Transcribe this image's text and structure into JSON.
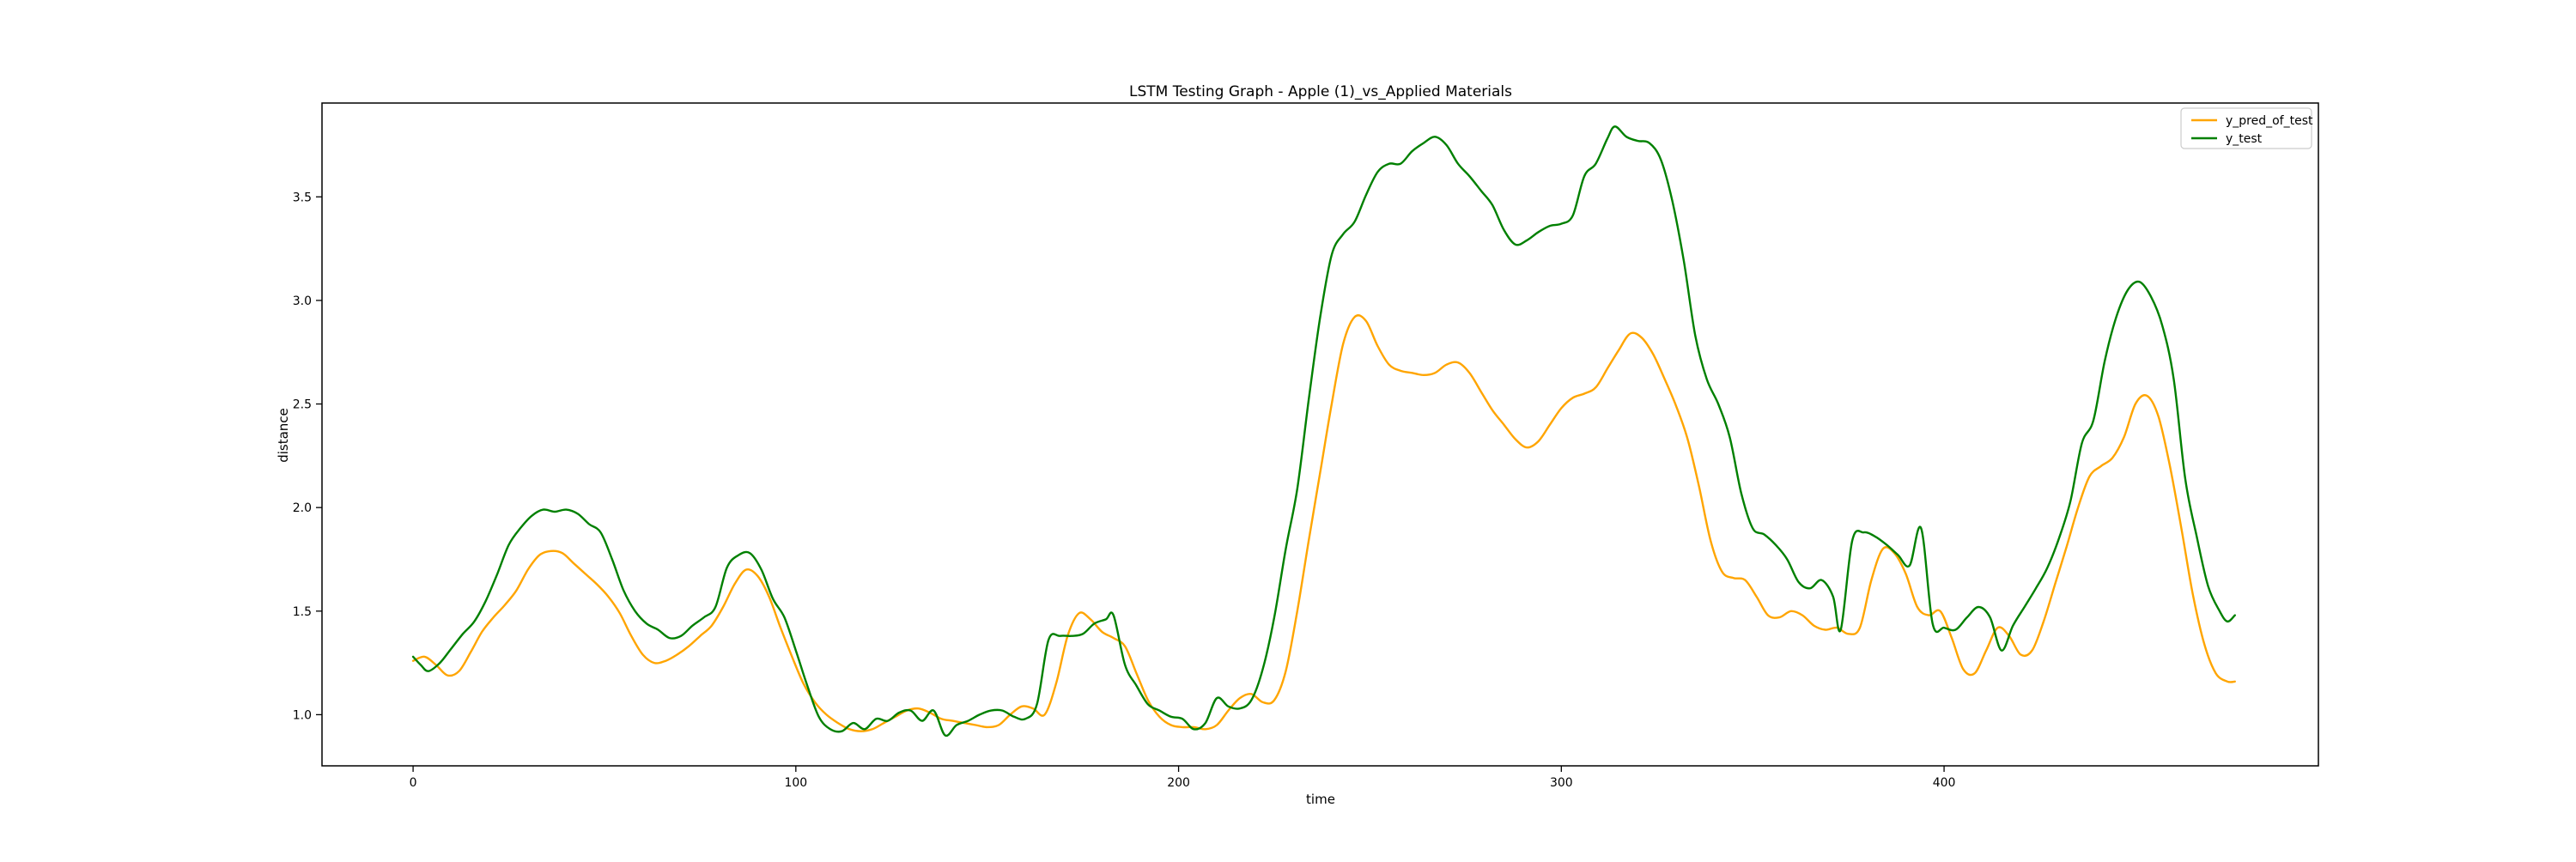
{
  "chart_data": {
    "type": "line",
    "title": "LSTM Testing Graph - Apple (1)_vs_Applied Materials",
    "xlabel": "time",
    "ylabel": "distance",
    "xlim": [
      -23.8,
      497.8
    ],
    "ylim": [
      0.753,
      3.953
    ],
    "xticks": [
      0,
      100,
      200,
      300,
      400
    ],
    "yticks": [
      1.0,
      1.5,
      2.0,
      2.5,
      3.0,
      3.5
    ],
    "xtick_labels": [
      "0",
      "100",
      "200",
      "300",
      "400"
    ],
    "ytick_labels": [
      "1.0",
      "1.5",
      "2.0",
      "2.5",
      "3.0",
      "3.5"
    ],
    "grid": false,
    "legend_position": "top-right",
    "series": [
      {
        "name": "y_pred_of_test",
        "color": "#ffa500",
        "points": [
          [
            0,
            1.26
          ],
          [
            3,
            1.28
          ],
          [
            6,
            1.24
          ],
          [
            9,
            1.19
          ],
          [
            12,
            1.21
          ],
          [
            15,
            1.3
          ],
          [
            18,
            1.4
          ],
          [
            21,
            1.47
          ],
          [
            24,
            1.53
          ],
          [
            27,
            1.6
          ],
          [
            30,
            1.7
          ],
          [
            33,
            1.77
          ],
          [
            36,
            1.79
          ],
          [
            39,
            1.78
          ],
          [
            42,
            1.73
          ],
          [
            45,
            1.68
          ],
          [
            48,
            1.63
          ],
          [
            51,
            1.57
          ],
          [
            54,
            1.49
          ],
          [
            57,
            1.38
          ],
          [
            60,
            1.29
          ],
          [
            63,
            1.25
          ],
          [
            66,
            1.26
          ],
          [
            69,
            1.29
          ],
          [
            72,
            1.33
          ],
          [
            75,
            1.38
          ],
          [
            78,
            1.43
          ],
          [
            81,
            1.52
          ],
          [
            84,
            1.63
          ],
          [
            87,
            1.7
          ],
          [
            90,
            1.67
          ],
          [
            93,
            1.57
          ],
          [
            96,
            1.42
          ],
          [
            99,
            1.28
          ],
          [
            102,
            1.15
          ],
          [
            105,
            1.06
          ],
          [
            108,
            1.0
          ],
          [
            111,
            0.96
          ],
          [
            114,
            0.93
          ],
          [
            117,
            0.92
          ],
          [
            120,
            0.93
          ],
          [
            123,
            0.96
          ],
          [
            126,
            0.99
          ],
          [
            129,
            1.02
          ],
          [
            132,
            1.03
          ],
          [
            135,
            1.01
          ],
          [
            138,
            0.98
          ],
          [
            141,
            0.97
          ],
          [
            144,
            0.96
          ],
          [
            147,
            0.95
          ],
          [
            150,
            0.94
          ],
          [
            153,
            0.95
          ],
          [
            156,
            1.0
          ],
          [
            159,
            1.04
          ],
          [
            162,
            1.03
          ],
          [
            165,
            1.0
          ],
          [
            168,
            1.15
          ],
          [
            171,
            1.38
          ],
          [
            174,
            1.49
          ],
          [
            177,
            1.46
          ],
          [
            180,
            1.4
          ],
          [
            183,
            1.37
          ],
          [
            186,
            1.33
          ],
          [
            189,
            1.2
          ],
          [
            192,
            1.07
          ],
          [
            195,
            0.99
          ],
          [
            198,
            0.95
          ],
          [
            201,
            0.94
          ],
          [
            204,
            0.94
          ],
          [
            207,
            0.93
          ],
          [
            210,
            0.95
          ],
          [
            213,
            1.02
          ],
          [
            216,
            1.08
          ],
          [
            219,
            1.1
          ],
          [
            222,
            1.06
          ],
          [
            225,
            1.07
          ],
          [
            228,
            1.21
          ],
          [
            231,
            1.5
          ],
          [
            234,
            1.84
          ],
          [
            237,
            2.17
          ],
          [
            240,
            2.5
          ],
          [
            243,
            2.79
          ],
          [
            246,
            2.92
          ],
          [
            249,
            2.9
          ],
          [
            252,
            2.78
          ],
          [
            255,
            2.69
          ],
          [
            258,
            2.66
          ],
          [
            261,
            2.65
          ],
          [
            264,
            2.64
          ],
          [
            267,
            2.65
          ],
          [
            270,
            2.69
          ],
          [
            273,
            2.7
          ],
          [
            276,
            2.65
          ],
          [
            279,
            2.56
          ],
          [
            282,
            2.47
          ],
          [
            285,
            2.4
          ],
          [
            288,
            2.33
          ],
          [
            291,
            2.29
          ],
          [
            294,
            2.32
          ],
          [
            297,
            2.4
          ],
          [
            300,
            2.48
          ],
          [
            303,
            2.53
          ],
          [
            306,
            2.55
          ],
          [
            309,
            2.58
          ],
          [
            312,
            2.67
          ],
          [
            315,
            2.76
          ],
          [
            318,
            2.84
          ],
          [
            321,
            2.82
          ],
          [
            324,
            2.74
          ],
          [
            327,
            2.62
          ],
          [
            330,
            2.49
          ],
          [
            333,
            2.33
          ],
          [
            336,
            2.1
          ],
          [
            339,
            1.84
          ],
          [
            342,
            1.69
          ],
          [
            345,
            1.66
          ],
          [
            348,
            1.65
          ],
          [
            351,
            1.57
          ],
          [
            354,
            1.48
          ],
          [
            357,
            1.47
          ],
          [
            360,
            1.5
          ],
          [
            363,
            1.48
          ],
          [
            366,
            1.43
          ],
          [
            369,
            1.41
          ],
          [
            372,
            1.42
          ],
          [
            375,
            1.39
          ],
          [
            378,
            1.42
          ],
          [
            381,
            1.65
          ],
          [
            384,
            1.8
          ],
          [
            387,
            1.78
          ],
          [
            390,
            1.68
          ],
          [
            393,
            1.52
          ],
          [
            396,
            1.48
          ],
          [
            399,
            1.5
          ],
          [
            402,
            1.37
          ],
          [
            405,
            1.22
          ],
          [
            408,
            1.2
          ],
          [
            411,
            1.31
          ],
          [
            414,
            1.42
          ],
          [
            417,
            1.38
          ],
          [
            420,
            1.29
          ],
          [
            423,
            1.31
          ],
          [
            426,
            1.45
          ],
          [
            429,
            1.63
          ],
          [
            432,
            1.81
          ],
          [
            435,
            2.0
          ],
          [
            438,
            2.15
          ],
          [
            441,
            2.2
          ],
          [
            444,
            2.24
          ],
          [
            447,
            2.34
          ],
          [
            450,
            2.5
          ],
          [
            453,
            2.54
          ],
          [
            456,
            2.44
          ],
          [
            459,
            2.2
          ],
          [
            462,
            1.9
          ],
          [
            465,
            1.58
          ],
          [
            468,
            1.34
          ],
          [
            471,
            1.2
          ],
          [
            474,
            1.16
          ],
          [
            476,
            1.16
          ]
        ]
      },
      {
        "name": "y_test",
        "color": "#008000",
        "points": [
          [
            0,
            1.28
          ],
          [
            2,
            1.24
          ],
          [
            4,
            1.21
          ],
          [
            7,
            1.25
          ],
          [
            10,
            1.32
          ],
          [
            13,
            1.39
          ],
          [
            16,
            1.45
          ],
          [
            19,
            1.55
          ],
          [
            22,
            1.68
          ],
          [
            25,
            1.82
          ],
          [
            28,
            1.9
          ],
          [
            31,
            1.96
          ],
          [
            34,
            1.99
          ],
          [
            37,
            1.98
          ],
          [
            40,
            1.99
          ],
          [
            43,
            1.97
          ],
          [
            46,
            1.92
          ],
          [
            49,
            1.88
          ],
          [
            52,
            1.75
          ],
          [
            55,
            1.6
          ],
          [
            58,
            1.5
          ],
          [
            61,
            1.44
          ],
          [
            64,
            1.41
          ],
          [
            67,
            1.37
          ],
          [
            70,
            1.38
          ],
          [
            73,
            1.43
          ],
          [
            76,
            1.47
          ],
          [
            79,
            1.52
          ],
          [
            82,
            1.71
          ],
          [
            85,
            1.77
          ],
          [
            88,
            1.78
          ],
          [
            91,
            1.7
          ],
          [
            94,
            1.56
          ],
          [
            97,
            1.47
          ],
          [
            100,
            1.31
          ],
          [
            103,
            1.14
          ],
          [
            106,
            0.99
          ],
          [
            109,
            0.93
          ],
          [
            112,
            0.92
          ],
          [
            115,
            0.96
          ],
          [
            118,
            0.93
          ],
          [
            121,
            0.98
          ],
          [
            124,
            0.97
          ],
          [
            127,
            1.01
          ],
          [
            130,
            1.02
          ],
          [
            133,
            0.97
          ],
          [
            136,
            1.02
          ],
          [
            139,
            0.9
          ],
          [
            142,
            0.95
          ],
          [
            145,
            0.97
          ],
          [
            148,
            1.0
          ],
          [
            151,
            1.02
          ],
          [
            154,
            1.02
          ],
          [
            157,
            0.99
          ],
          [
            160,
            0.98
          ],
          [
            163,
            1.05
          ],
          [
            166,
            1.36
          ],
          [
            169,
            1.38
          ],
          [
            172,
            1.38
          ],
          [
            175,
            1.39
          ],
          [
            178,
            1.44
          ],
          [
            181,
            1.46
          ],
          [
            183,
            1.48
          ],
          [
            186,
            1.24
          ],
          [
            189,
            1.14
          ],
          [
            192,
            1.05
          ],
          [
            195,
            1.02
          ],
          [
            198,
            0.99
          ],
          [
            201,
            0.98
          ],
          [
            204,
            0.93
          ],
          [
            207,
            0.96
          ],
          [
            210,
            1.08
          ],
          [
            213,
            1.04
          ],
          [
            216,
            1.03
          ],
          [
            219,
            1.07
          ],
          [
            222,
            1.22
          ],
          [
            225,
            1.47
          ],
          [
            228,
            1.8
          ],
          [
            231,
            2.09
          ],
          [
            234,
            2.52
          ],
          [
            237,
            2.92
          ],
          [
            240,
            3.22
          ],
          [
            243,
            3.32
          ],
          [
            246,
            3.38
          ],
          [
            249,
            3.51
          ],
          [
            252,
            3.62
          ],
          [
            255,
            3.66
          ],
          [
            258,
            3.66
          ],
          [
            261,
            3.72
          ],
          [
            264,
            3.76
          ],
          [
            267,
            3.79
          ],
          [
            270,
            3.75
          ],
          [
            273,
            3.66
          ],
          [
            276,
            3.6
          ],
          [
            279,
            3.53
          ],
          [
            282,
            3.46
          ],
          [
            285,
            3.34
          ],
          [
            288,
            3.27
          ],
          [
            291,
            3.29
          ],
          [
            294,
            3.33
          ],
          [
            297,
            3.36
          ],
          [
            300,
            3.37
          ],
          [
            303,
            3.41
          ],
          [
            306,
            3.6
          ],
          [
            309,
            3.66
          ],
          [
            312,
            3.78
          ],
          [
            314,
            3.84
          ],
          [
            317,
            3.79
          ],
          [
            320,
            3.77
          ],
          [
            323,
            3.76
          ],
          [
            326,
            3.68
          ],
          [
            329,
            3.48
          ],
          [
            332,
            3.19
          ],
          [
            335,
            2.83
          ],
          [
            338,
            2.62
          ],
          [
            341,
            2.5
          ],
          [
            344,
            2.34
          ],
          [
            347,
            2.07
          ],
          [
            350,
            1.9
          ],
          [
            353,
            1.87
          ],
          [
            356,
            1.82
          ],
          [
            359,
            1.75
          ],
          [
            362,
            1.64
          ],
          [
            365,
            1.61
          ],
          [
            368,
            1.65
          ],
          [
            371,
            1.57
          ],
          [
            373,
            1.41
          ],
          [
            376,
            1.84
          ],
          [
            379,
            1.88
          ],
          [
            382,
            1.86
          ],
          [
            385,
            1.82
          ],
          [
            388,
            1.77
          ],
          [
            391,
            1.72
          ],
          [
            394,
            1.9
          ],
          [
            397,
            1.44
          ],
          [
            400,
            1.42
          ],
          [
            403,
            1.41
          ],
          [
            406,
            1.47
          ],
          [
            409,
            1.52
          ],
          [
            412,
            1.47
          ],
          [
            415,
            1.31
          ],
          [
            418,
            1.43
          ],
          [
            421,
            1.52
          ],
          [
            424,
            1.61
          ],
          [
            427,
            1.71
          ],
          [
            430,
            1.85
          ],
          [
            433,
            2.03
          ],
          [
            436,
            2.31
          ],
          [
            439,
            2.42
          ],
          [
            442,
            2.71
          ],
          [
            445,
            2.92
          ],
          [
            448,
            3.05
          ],
          [
            451,
            3.09
          ],
          [
            454,
            3.02
          ],
          [
            457,
            2.88
          ],
          [
            460,
            2.62
          ],
          [
            463,
            2.14
          ],
          [
            466,
            1.86
          ],
          [
            469,
            1.62
          ],
          [
            472,
            1.5
          ],
          [
            474,
            1.45
          ],
          [
            476,
            1.48
          ]
        ]
      }
    ]
  }
}
